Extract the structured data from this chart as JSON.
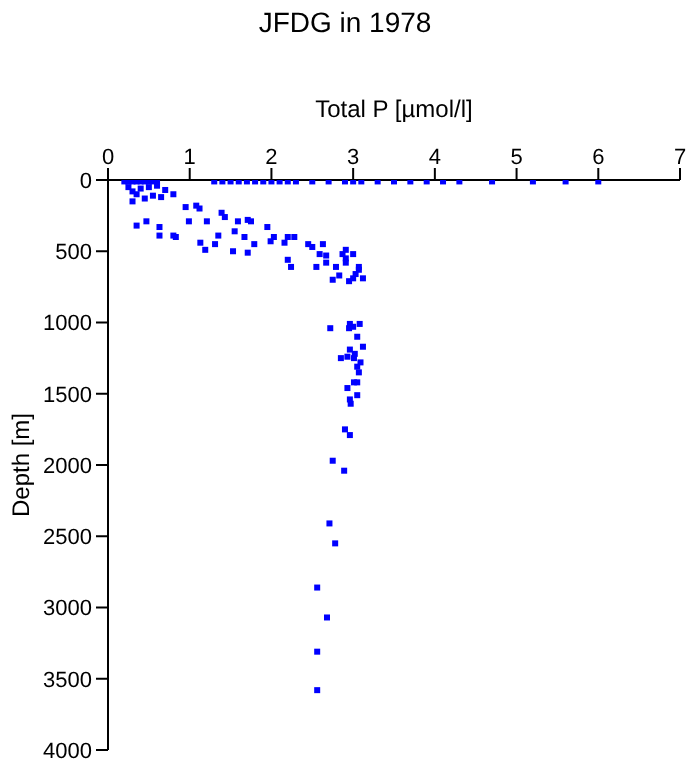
{
  "chart_data": {
    "type": "scatter",
    "title": "JFDG in 1978",
    "xlabel": "Total P [µmol/l]",
    "ylabel": "Depth [m]",
    "xlim": [
      0,
      7
    ],
    "xticks": [
      0,
      1,
      2,
      3,
      4,
      5,
      6,
      7
    ],
    "ylim": [
      4000,
      0
    ],
    "yticks": [
      0,
      500,
      1000,
      1500,
      2000,
      2500,
      3000,
      3500,
      4000
    ],
    "grid": false,
    "marker": "square",
    "legend": false,
    "series": [
      {
        "color": "#0000ff",
        "x": [
          0.2,
          0.25,
          0.3,
          0.35,
          0.4,
          0.45,
          0.5,
          0.55,
          0.6,
          1.3,
          1.4,
          1.5,
          1.6,
          1.7,
          1.8,
          1.9,
          2.0,
          2.1,
          2.2,
          2.3,
          2.5,
          2.7,
          2.9,
          3.0,
          3.1,
          3.3,
          3.5,
          3.7,
          3.9,
          4.1,
          4.3,
          4.7,
          5.2,
          5.6,
          6.0,
          0.25,
          0.3,
          0.35,
          0.4,
          0.5,
          0.6,
          0.7,
          0.3,
          0.45,
          0.55,
          0.65,
          0.8,
          0.35,
          0.47,
          0.63,
          0.63,
          0.83,
          0.95,
          1.08,
          1.12,
          0.99,
          1.21,
          0.8,
          1.13,
          1.19,
          1.31,
          1.39,
          1.43,
          1.35,
          1.55,
          1.59,
          1.71,
          1.75,
          1.67,
          1.95,
          1.79,
          1.71,
          1.53,
          2.03,
          2.2,
          2.28,
          1.99,
          2.16,
          2.45,
          2.5,
          2.63,
          2.2,
          2.24,
          2.59,
          2.67,
          2.87,
          2.91,
          3.0,
          2.55,
          2.67,
          2.79,
          2.91,
          2.91,
          3.07,
          3.07,
          3.03,
          2.83,
          2.75,
          3.0,
          3.12,
          2.95,
          2.72,
          2.96,
          3.08,
          2.95,
          3.0,
          3.05,
          3.12,
          2.96,
          3.02,
          2.85,
          2.93,
          3.01,
          3.09,
          3.05,
          3.07,
          3.01,
          3.05,
          2.93,
          3.05,
          2.96,
          2.97,
          2.9,
          2.96,
          2.75,
          2.89,
          2.71,
          2.78,
          2.56,
          2.68,
          2.56,
          2.56
        ],
        "values": [
          10,
          10,
          10,
          10,
          10,
          10,
          10,
          10,
          10,
          10,
          10,
          10,
          10,
          10,
          10,
          10,
          10,
          10,
          10,
          10,
          10,
          10,
          10,
          10,
          10,
          10,
          10,
          10,
          10,
          10,
          10,
          10,
          10,
          10,
          10,
          50,
          80,
          100,
          60,
          50,
          40,
          70,
          150,
          130,
          110,
          120,
          100,
          320,
          290,
          330,
          390,
          400,
          190,
          180,
          200,
          290,
          290,
          390,
          440,
          490,
          450,
          230,
          260,
          390,
          360,
          290,
          280,
          290,
          400,
          330,
          450,
          510,
          500,
          400,
          400,
          400,
          430,
          440,
          450,
          470,
          450,
          560,
          610,
          520,
          530,
          520,
          490,
          520,
          610,
          580,
          610,
          550,
          580,
          610,
          630,
          660,
          670,
          700,
          690,
          690,
          710,
          1040,
          1010,
          1010,
          1040,
          1030,
          1100,
          1170,
          1190,
          1220,
          1250,
          1240,
          1250,
          1280,
          1310,
          1350,
          1420,
          1420,
          1460,
          1510,
          1540,
          1570,
          1750,
          1790,
          1970,
          2040,
          2410,
          2550,
          2860,
          3070,
          3310,
          3580
        ]
      }
    ]
  }
}
